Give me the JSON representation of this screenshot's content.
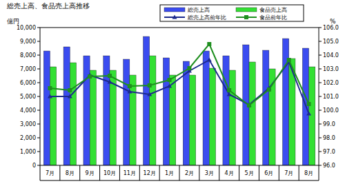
{
  "chart_data": {
    "type": "bar",
    "title": "総売上高、食品売上高推移",
    "y_label": "億円",
    "y2_label": "%",
    "categories": [
      "7月",
      "8月",
      "9月",
      "10月",
      "11月",
      "12月",
      "1月",
      "2月",
      "3月",
      "4月",
      "5月",
      "6月",
      "7月",
      "8月"
    ],
    "series": [
      {
        "name": "総売上高",
        "type": "bar",
        "color": "#3b4cf0",
        "values": [
          8300,
          8600,
          7950,
          7950,
          7700,
          9350,
          7800,
          7550,
          8300,
          7950,
          8750,
          8350,
          9200,
          8500
        ]
      },
      {
        "name": "食品売上高",
        "type": "bar",
        "color": "#33e033",
        "values": [
          7150,
          7450,
          6900,
          6900,
          6550,
          7950,
          6550,
          6550,
          7050,
          6900,
          7500,
          7000,
          7750,
          7150
        ]
      },
      {
        "name": "総売上高前年比",
        "type": "line",
        "axis": "y2",
        "color": "#1c2a8c",
        "marker": "triangle",
        "values": [
          101.0,
          101.0,
          102.55,
          102.05,
          101.35,
          101.15,
          101.75,
          102.85,
          103.65,
          101.15,
          100.4,
          101.6,
          103.5,
          99.75
        ]
      },
      {
        "name": "食品前年比",
        "type": "line",
        "axis": "y2",
        "color": "#1f8f1f",
        "marker": "square",
        "values": [
          101.6,
          101.45,
          102.45,
          102.5,
          101.75,
          101.8,
          102.2,
          103.05,
          104.8,
          101.45,
          100.35,
          101.5,
          103.65,
          100.45
        ]
      }
    ],
    "ylim": [
      0,
      10000
    ],
    "yticks": [
      0,
      {
        "value": 1000,
        "label": "1,000"
      },
      {
        "value": 2000,
        "label": "2,000"
      },
      {
        "value": 3000,
        "label": "3,000"
      },
      {
        "value": 4000,
        "label": "4,000"
      },
      {
        "value": 5000,
        "label": "5,000"
      },
      {
        "value": 6000,
        "label": "6,000"
      },
      {
        "value": 7000,
        "label": "7,000"
      },
      {
        "value": 8000,
        "label": "8,000"
      },
      {
        "value": 9000,
        "label": "9,000"
      },
      {
        "value": 10000,
        "label": "10,000"
      }
    ],
    "y2lim": [
      96,
      106
    ],
    "y2ticks": [
      {
        "value": 96,
        "label": "96.0"
      },
      {
        "value": 97,
        "label": "97.0"
      },
      {
        "value": 98,
        "label": "98.0"
      },
      {
        "value": 99,
        "label": "99.0"
      },
      {
        "value": 100,
        "label": "100.0"
      },
      {
        "value": 101,
        "label": "101.0"
      },
      {
        "value": 102,
        "label": "102.0"
      },
      {
        "value": 103,
        "label": "103.0"
      },
      {
        "value": 104,
        "label": "104.0"
      },
      {
        "value": 105,
        "label": "105.0"
      },
      {
        "value": 106,
        "label": "106.0"
      }
    ],
    "grid": false,
    "legend": "upper right"
  }
}
